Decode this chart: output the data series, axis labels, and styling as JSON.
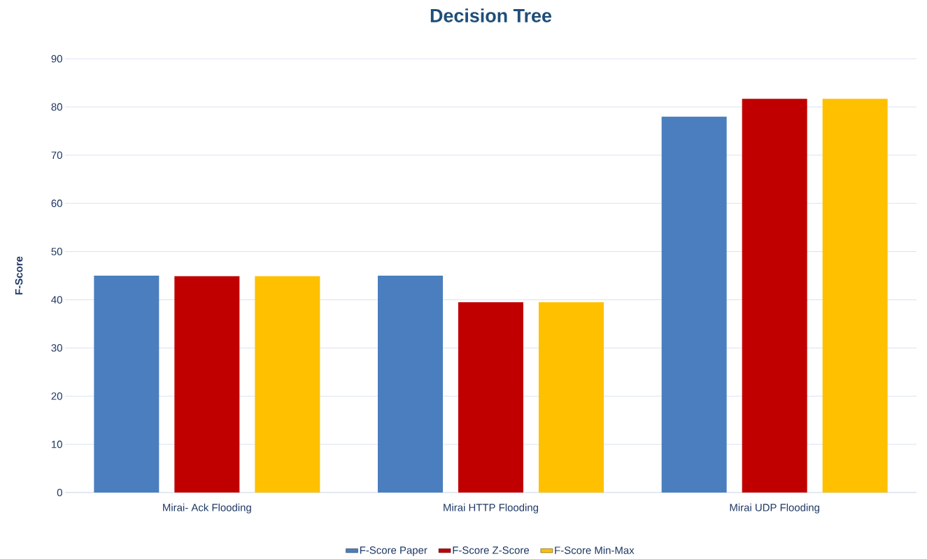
{
  "chart_data": {
    "type": "bar",
    "title": "Decision Tree",
    "ylabel": "F-Score",
    "categories": [
      "Mirai- Ack Flooding",
      "Mirai HTTP Flooding",
      "Mirai UDP Flooding"
    ],
    "series": [
      {
        "name": "F-Score Paper",
        "color": "#4a7ebf",
        "values": [
          45,
          45,
          78
        ]
      },
      {
        "name": "F-Score Z-Score",
        "color": "#c00000",
        "values": [
          44.9,
          39.5,
          81.7
        ]
      },
      {
        "name": "F-Score Min-Max",
        "color": "#ffc000",
        "values": [
          44.9,
          39.5,
          81.7
        ]
      }
    ],
    "ylim": [
      0,
      90
    ],
    "yticks": [
      0,
      10,
      20,
      30,
      40,
      50,
      60,
      70,
      80,
      90
    ],
    "grid": "y",
    "legend": "bottom"
  }
}
